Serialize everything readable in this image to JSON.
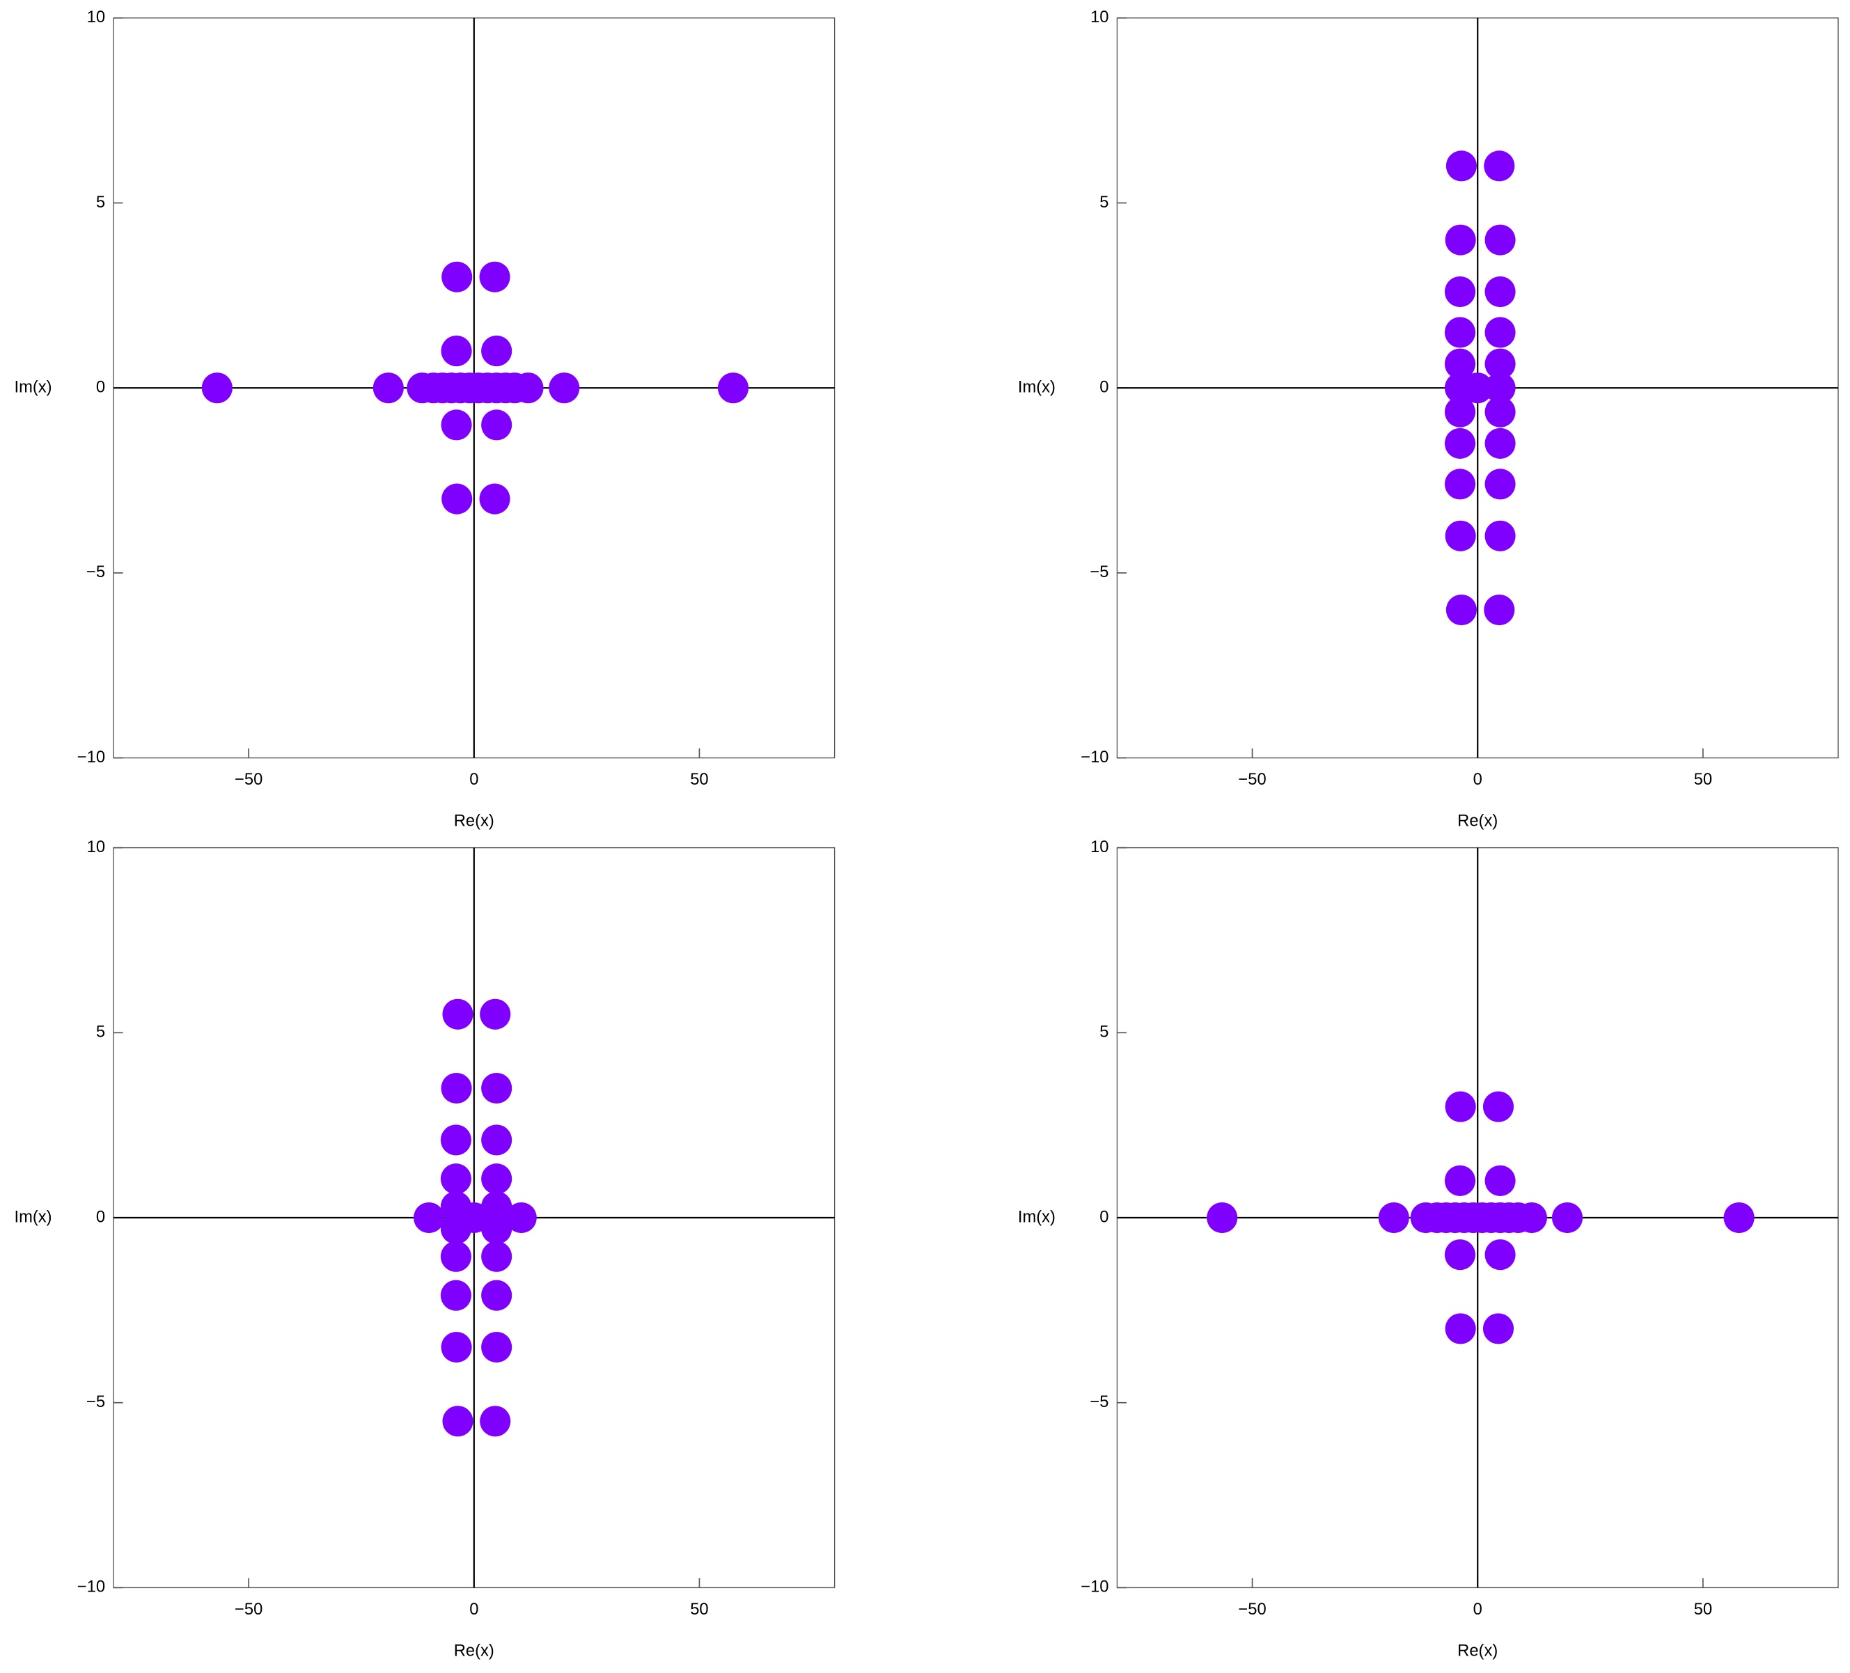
{
  "chart_data": [
    {
      "type": "scatter",
      "xlabel": "Re(x)",
      "ylabel": "Im(x)",
      "color": "#7f00ff",
      "xlim": [
        -80,
        80
      ],
      "ylim": [
        -10,
        10
      ],
      "xticks": [
        {
          "value": -50,
          "label": "−50"
        },
        0,
        50
      ],
      "yticks": [
        {
          "value": -10,
          "label": "−10"
        },
        {
          "value": -5,
          "label": "−5"
        },
        0,
        5,
        10
      ],
      "x": [
        -57,
        -19,
        -11.5,
        -9,
        -7,
        -5,
        -3,
        -1,
        1,
        3,
        5,
        7,
        9,
        12,
        20,
        57.5,
        -3.8,
        4.6,
        -3.9,
        5,
        -3.9,
        5,
        -3.8,
        4.6
      ],
      "values": [
        0,
        0,
        0,
        0,
        0,
        0,
        0,
        0,
        0,
        0,
        0,
        0,
        0,
        0,
        0,
        0,
        3,
        3,
        1,
        1,
        -1,
        -1,
        -3,
        -3
      ]
    },
    {
      "type": "scatter",
      "xlabel": "Re(x)",
      "ylabel": "Im(x)",
      "color": "#7f00ff",
      "xlim": [
        -80,
        80
      ],
      "ylim": [
        -10,
        10
      ],
      "xticks": [
        {
          "value": -50,
          "label": "−50"
        },
        0,
        50
      ],
      "yticks": [
        {
          "value": -10,
          "label": "−10"
        },
        {
          "value": -5,
          "label": "−5"
        },
        0,
        5,
        10
      ],
      "x": [
        -3.6,
        -3.8,
        -3.9,
        -3.9,
        -3.9,
        -3.9,
        -3.9,
        -3.9,
        -3.9,
        -3.8,
        -3.6,
        4.8,
        5,
        5,
        5,
        5,
        5,
        5,
        5,
        5,
        5,
        4.8,
        0
      ],
      "values": [
        6,
        4,
        2.6,
        1.5,
        0.65,
        0,
        -0.65,
        -1.5,
        -2.6,
        -4,
        -6,
        6,
        4,
        2.6,
        1.5,
        0.65,
        0,
        -0.65,
        -1.5,
        -2.6,
        -4,
        -6,
        0
      ]
    },
    {
      "type": "scatter",
      "xlabel": "Re(x)",
      "ylabel": "Im(x)",
      "color": "#7f00ff",
      "xlim": [
        -80,
        80
      ],
      "ylim": [
        -10,
        10
      ],
      "xticks": [
        {
          "value": -50,
          "label": "−50"
        },
        0,
        50
      ],
      "yticks": [
        {
          "value": -10,
          "label": "−10"
        },
        {
          "value": -5,
          "label": "−5"
        },
        0,
        5,
        10
      ],
      "x": [
        -3.6,
        -3.9,
        -4,
        -4,
        -4,
        -4,
        -4,
        -4,
        -3.9,
        -3.6,
        4.7,
        5,
        5,
        5,
        5,
        5,
        5,
        5,
        5,
        4.7,
        -10,
        10.5,
        0
      ],
      "values": [
        5.5,
        3.5,
        2.1,
        1.05,
        0.3,
        -0.3,
        -1.05,
        -2.1,
        -3.5,
        -5.5,
        5.5,
        3.5,
        2.1,
        1.05,
        0.3,
        -0.3,
        -1.05,
        -2.1,
        -3.5,
        -5.5,
        0,
        0,
        0
      ]
    },
    {
      "type": "scatter",
      "xlabel": "Re(x)",
      "ylabel": "Im(x)",
      "color": "#7f00ff",
      "xlim": [
        -80,
        80
      ],
      "ylim": [
        -10,
        10
      ],
      "xticks": [
        {
          "value": -50,
          "label": "−50"
        },
        0,
        50
      ],
      "yticks": [
        {
          "value": -10,
          "label": "−10"
        },
        {
          "value": -5,
          "label": "−5"
        },
        0,
        5,
        10
      ],
      "x": [
        -56.7,
        -18.6,
        -11.5,
        -9,
        -7,
        -5,
        -3,
        -1,
        1,
        3,
        5,
        7,
        9,
        12,
        19.9,
        58,
        -3.8,
        4.6,
        -3.9,
        5,
        -3.9,
        5,
        -3.8,
        4.6
      ],
      "values": [
        0,
        0,
        0,
        0,
        0,
        0,
        0,
        0,
        0,
        0,
        0,
        0,
        0,
        0,
        0,
        0,
        3,
        3,
        1,
        1,
        -1,
        -1,
        -3,
        -3
      ]
    }
  ]
}
